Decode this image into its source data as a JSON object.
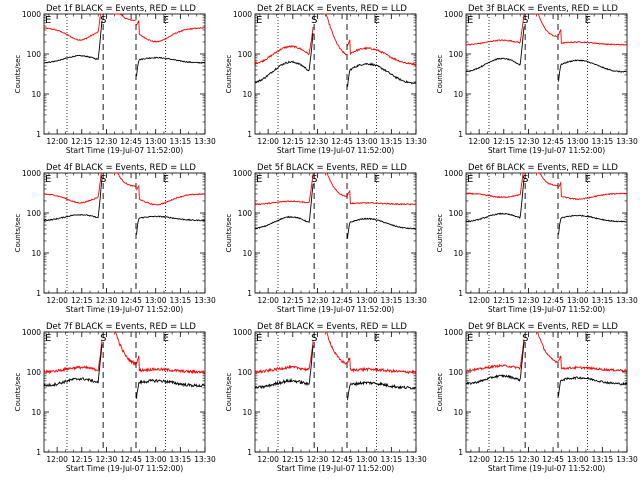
{
  "colors": {
    "events": "#000000",
    "lld": "#ff0000",
    "axis": "#000000",
    "background": "#ffffff"
  },
  "chart_data": [
    {
      "type": "line",
      "title": "Det 1f BLACK = Events, RED = LLD",
      "xlabel": "Start Time (19-Jul-07 11:52:00)",
      "ylabel": "Counts/sec",
      "events_base": 60,
      "lld_base": 450,
      "events_amp": 1.5,
      "lld_amp": 0.5,
      "noise": 0.03
    },
    {
      "type": "line",
      "title": "Det 2f BLACK = Events, RED = LLD",
      "xlabel": "Start Time (19-Jul-07 11:52:00)",
      "ylabel": "Counts/sec",
      "events_base": 18,
      "lld_base": 55,
      "events_amp": 3.5,
      "lld_amp": 2.8,
      "noise": 0.05
    },
    {
      "type": "line",
      "title": "Det 3f BLACK = Events, RED = LLD",
      "xlabel": "Start Time (19-Jul-07 11:52:00)",
      "ylabel": "Counts/sec",
      "events_base": 35,
      "lld_base": 170,
      "events_amp": 2.2,
      "lld_amp": 1.3,
      "noise": 0.03
    },
    {
      "type": "line",
      "title": "Det 4f BLACK = Events, RED = LLD",
      "xlabel": "Start Time (19-Jul-07 11:52:00)",
      "ylabel": "Counts/sec",
      "events_base": 65,
      "lld_base": 300,
      "events_amp": 1.4,
      "lld_amp": 0.6,
      "noise": 0.03
    },
    {
      "type": "line",
      "title": "Det 5f BLACK = Events, RED = LLD",
      "xlabel": "Start Time (19-Jul-07 11:52:00)",
      "ylabel": "Counts/sec",
      "events_base": 40,
      "lld_base": 165,
      "events_amp": 2.0,
      "lld_amp": 1.2,
      "noise": 0.03
    },
    {
      "type": "line",
      "title": "Det 6f BLACK = Events, RED = LLD",
      "xlabel": "Start Time (19-Jul-07 11:52:00)",
      "ylabel": "Counts/sec",
      "events_base": 60,
      "lld_base": 310,
      "events_amp": 1.6,
      "lld_amp": 0.8,
      "noise": 0.03
    },
    {
      "type": "line",
      "title": "Det 7f BLACK = Events, RED = LLD",
      "xlabel": "Start Time (19-Jul-07 11:52:00)",
      "ylabel": "Counts/sec",
      "events_base": 45,
      "lld_base": 100,
      "events_amp": 1.5,
      "lld_amp": 1.3,
      "noise": 0.08
    },
    {
      "type": "line",
      "title": "Det 8f BLACK = Events, RED = LLD",
      "xlabel": "Start Time (19-Jul-07 11:52:00)",
      "ylabel": "Counts/sec",
      "events_base": 40,
      "lld_base": 100,
      "events_amp": 1.5,
      "lld_amp": 1.3,
      "noise": 0.08
    },
    {
      "type": "line",
      "title": "Det 9f BLACK = Events, RED = LLD",
      "xlabel": "Start Time (19-Jul-07 11:52:00)",
      "ylabel": "Counts/sec",
      "events_base": 50,
      "lld_base": 110,
      "events_amp": 1.6,
      "lld_amp": 1.3,
      "noise": 0.06
    }
  ],
  "shared_axes": {
    "x_range_minutes": [
      0,
      98
    ],
    "x_ticks": [
      "12:00",
      "12:15",
      "12:30",
      "12:45",
      "13:00",
      "13:15",
      "13:30"
    ],
    "y_ticks": [
      "1",
      "10",
      "100",
      "1000"
    ],
    "y_range": [
      1,
      1000
    ],
    "y_scale": "log",
    "markers": {
      "start": "S",
      "end": "E",
      "top_left": "E"
    }
  }
}
